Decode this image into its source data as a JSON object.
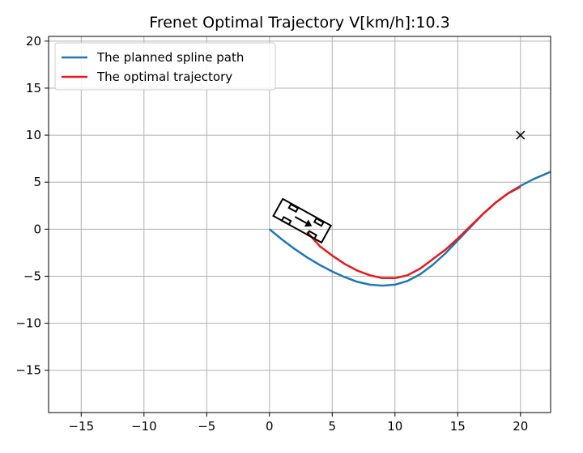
{
  "chart_data": {
    "type": "line",
    "title": "Frenet Optimal Trajectory V[km/h]:10.3",
    "xlabel": "",
    "ylabel": "",
    "xlim": [
      -17.6,
      22.4
    ],
    "ylim": [
      -19.5,
      20.5
    ],
    "xticks": [
      -15,
      -10,
      -5,
      0,
      5,
      10,
      15,
      20
    ],
    "yticks": [
      -15,
      -10,
      -5,
      0,
      5,
      10,
      15,
      20
    ],
    "grid": true,
    "legend": "upper-left",
    "series": [
      {
        "name": "The planned spline path",
        "color": "#1f77b4",
        "x": [
          0,
          1,
          2,
          3,
          4,
          5,
          6,
          7,
          8,
          9,
          10,
          11,
          12,
          13,
          14,
          15,
          16,
          17,
          18,
          19,
          20,
          21,
          22.4
        ],
        "y": [
          0,
          -1.1,
          -2.1,
          -3.0,
          -3.8,
          -4.5,
          -5.1,
          -5.6,
          -5.9,
          -6.0,
          -5.9,
          -5.5,
          -4.8,
          -3.8,
          -2.6,
          -1.2,
          0.2,
          1.6,
          2.8,
          3.8,
          4.6,
          5.3,
          6.1
        ]
      },
      {
        "name": "The optimal trajectory",
        "color": "#e41a1c",
        "x": [
          3.0,
          4,
          5,
          6,
          7,
          8,
          9,
          10,
          11,
          12,
          13,
          14,
          15,
          16,
          17,
          18,
          19,
          20
        ],
        "y": [
          -0.3,
          -1.8,
          -2.8,
          -3.7,
          -4.4,
          -4.9,
          -5.2,
          -5.2,
          -4.9,
          -4.2,
          -3.2,
          -2.2,
          -1.0,
          0.3,
          1.6,
          2.8,
          3.8,
          4.5
        ]
      }
    ],
    "markers": [
      {
        "type": "cross",
        "x": 20,
        "y": 10,
        "color": "#000000"
      }
    ],
    "vehicle": {
      "x": 2.6,
      "y": 0.9,
      "heading_deg": -29,
      "color": "#000000"
    }
  }
}
